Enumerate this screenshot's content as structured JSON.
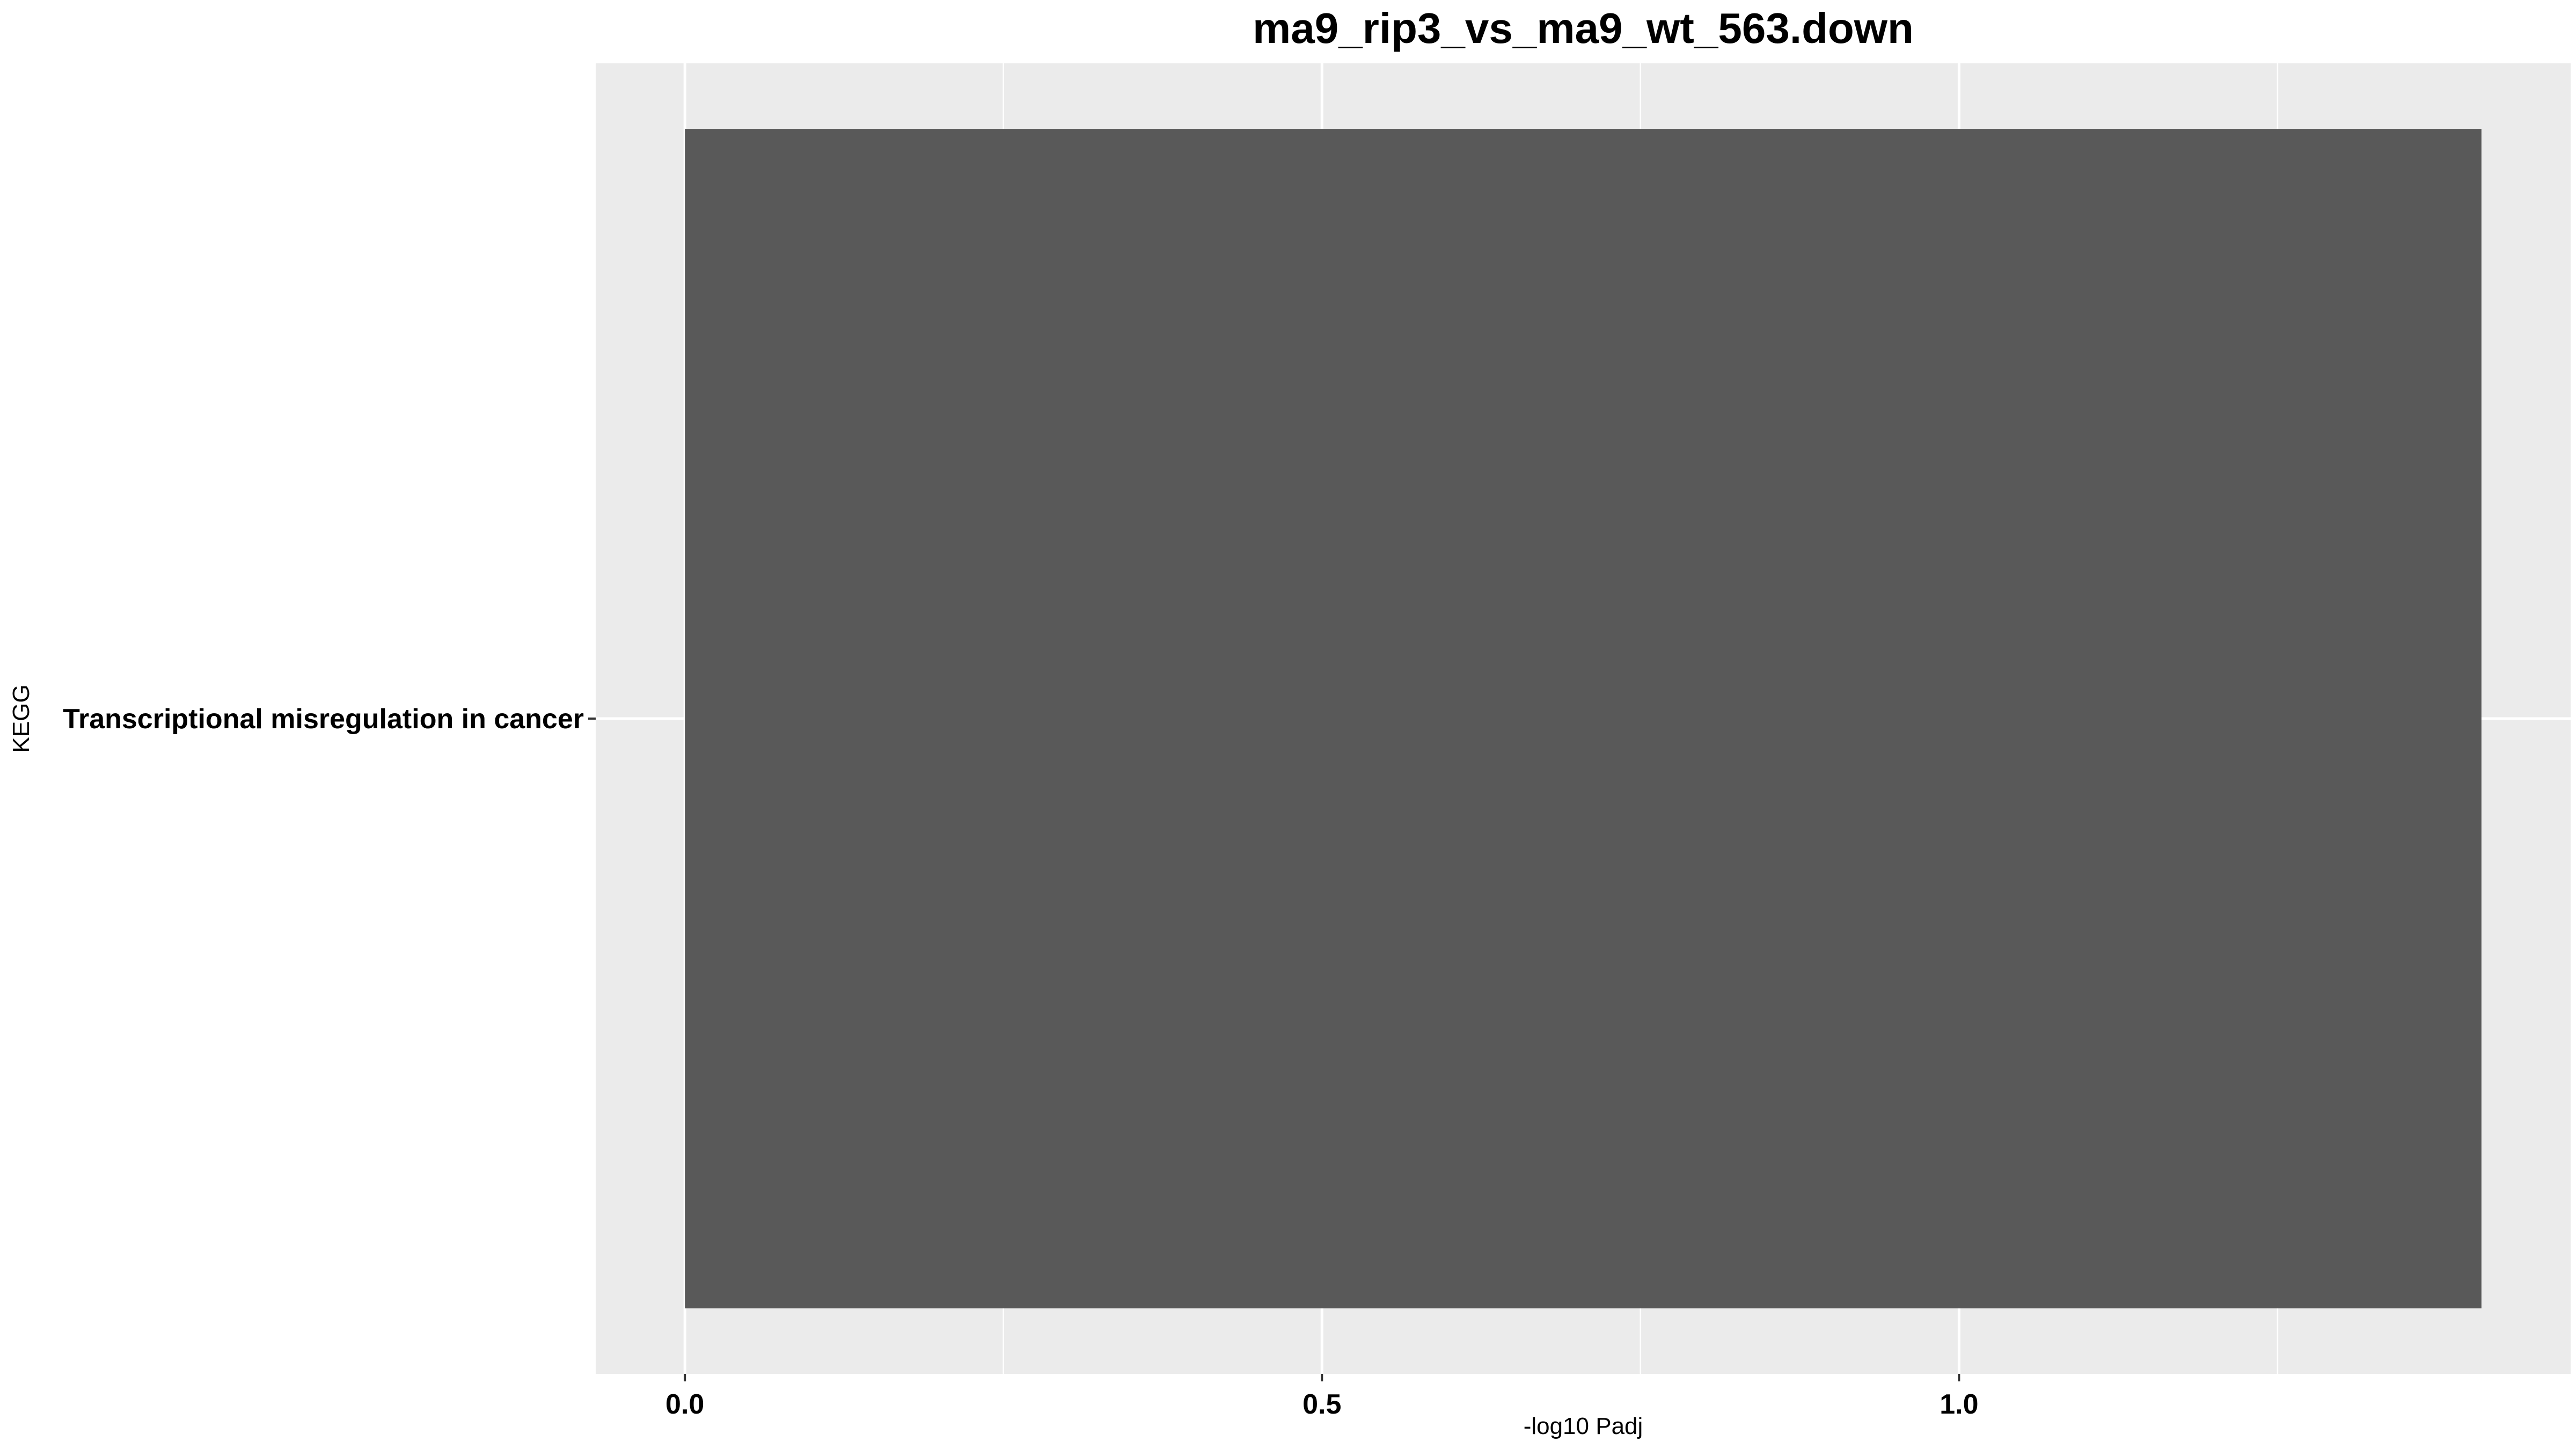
{
  "chart_data": {
    "type": "bar",
    "orientation": "horizontal",
    "title": "ma9_rip3_vs_ma9_wt_563.down",
    "xlabel": "-log10 Padj",
    "ylabel": "KEGG",
    "categories": [
      "Transcriptional misregulation in cancer"
    ],
    "values": [
      1.41
    ],
    "xlim": [
      -0.07,
      1.48
    ],
    "xticks": [
      0.0,
      0.5,
      1.0
    ],
    "xtick_labels": [
      "0.0",
      "0.5",
      "1.0"
    ],
    "x_minor_ticks": [
      0.25,
      0.75,
      1.25
    ],
    "grid": true,
    "legend": "none",
    "colors": {
      "bar": "#595959",
      "panel": "#ebebeb",
      "grid": "#ffffff",
      "tick": "#333333"
    }
  }
}
